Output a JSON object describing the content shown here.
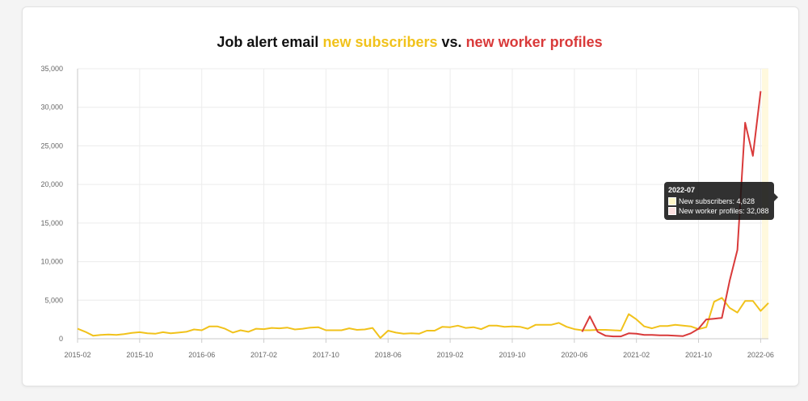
{
  "chart_data": {
    "type": "line",
    "title_prefix": "Job alert email",
    "title_series1": "new subscribers",
    "title_vs": "vs.",
    "title_series2": "new worker profiles",
    "xlabel": "",
    "ylabel": "",
    "ylim": [
      0,
      35000
    ],
    "yticks": [
      "0",
      "5,000",
      "10,000",
      "15,000",
      "20,000",
      "25,000",
      "30,000",
      "35,000"
    ],
    "xtick_labels": [
      "2015-02",
      "2015-10",
      "2016-06",
      "2017-02",
      "2017-10",
      "2018-06",
      "2019-02",
      "2019-10",
      "2020-06",
      "2021-02",
      "2021-10",
      "2022-06"
    ],
    "start_month": "2015-02",
    "grid": true,
    "series": [
      {
        "name": "New subscribers",
        "color": "#f1c21b",
        "values": [
          1300,
          900,
          400,
          500,
          550,
          500,
          600,
          750,
          850,
          700,
          650,
          850,
          700,
          800,
          900,
          1200,
          1100,
          1600,
          1600,
          1300,
          800,
          1100,
          900,
          1300,
          1250,
          1400,
          1350,
          1450,
          1200,
          1300,
          1450,
          1500,
          1100,
          1100,
          1100,
          1350,
          1150,
          1200,
          1400,
          100,
          1050,
          800,
          650,
          700,
          650,
          1050,
          1050,
          1550,
          1500,
          1700,
          1400,
          1500,
          1250,
          1700,
          1700,
          1550,
          1600,
          1550,
          1300,
          1800,
          1800,
          1800,
          2050,
          1550,
          1250,
          1100,
          1100,
          1150,
          1150,
          1100,
          1050,
          3200,
          2500,
          1600,
          1350,
          1650,
          1650,
          1800,
          1700,
          1600,
          1250,
          1500,
          4800,
          5300,
          4000,
          3400,
          4900,
          4900,
          3600,
          4628
        ]
      },
      {
        "name": "New worker profiles",
        "color": "#d93a3a",
        "start_index": 65,
        "values": [
          900,
          2900,
          900,
          400,
          300,
          300,
          700,
          650,
          500,
          500,
          450,
          450,
          400,
          350,
          700,
          1300,
          2500,
          2600,
          2700,
          7500,
          11500,
          28000,
          23700,
          32088
        ]
      }
    ],
    "tooltip": {
      "month": "2022-07",
      "lines": [
        "New subscribers: 4,628",
        "New worker profiles: 32,088"
      ]
    }
  }
}
